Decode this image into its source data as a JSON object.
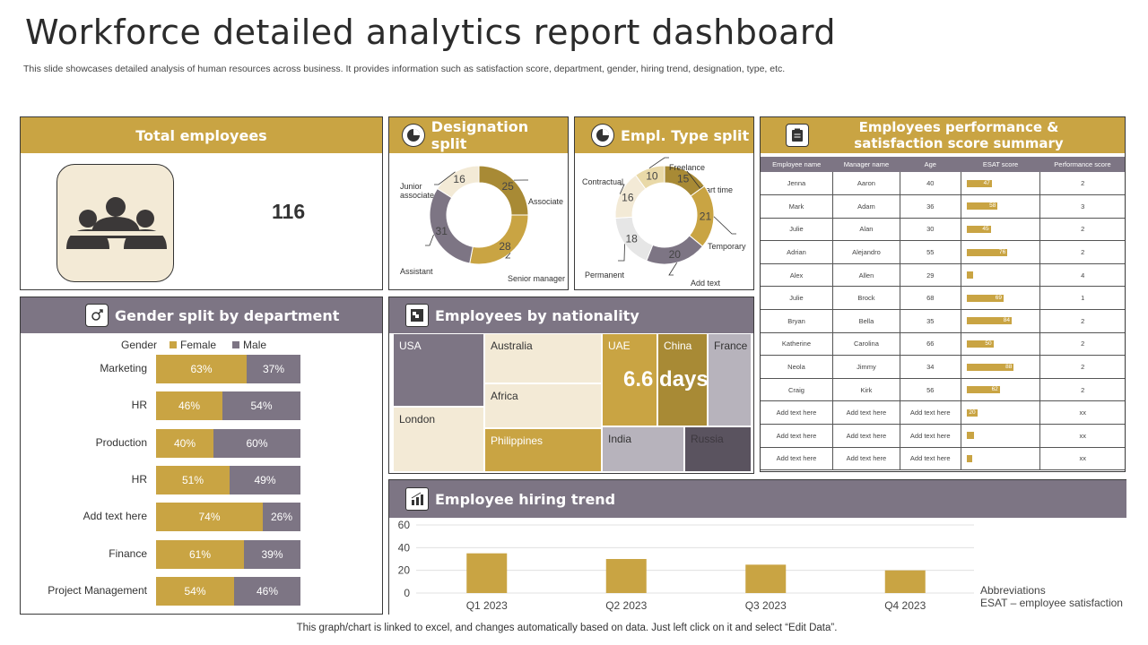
{
  "page": {
    "title": "Workforce detailed analytics report dashboard",
    "subtitle": "This slide showcases detailed analysis of human resources across business. It provides information such as satisfaction score, department, gender, hiring trend, designation, type, etc.",
    "footer": "This graph/chart is linked to excel, and changes automatically based on data. Just left click on it and select “Edit Data”."
  },
  "total": {
    "header": "Total employees",
    "value": "116",
    "icon": "people-group-icon"
  },
  "designation": {
    "header": "Designation split",
    "icon": "pie-chart-icon",
    "slices": [
      {
        "label": "Associate",
        "value": 25,
        "color": "#a88a35"
      },
      {
        "label": "Senior manager",
        "value": 28,
        "color": "#c9a443"
      },
      {
        "label": "Assistant",
        "value": 31,
        "color": "#7d7584"
      },
      {
        "label": "Junior associate",
        "value": 16,
        "color": "#f3ead6"
      }
    ]
  },
  "empltype": {
    "header": "Empl. Type split",
    "icon": "pie-chart-icon",
    "slices": [
      {
        "label": "Part time",
        "value": 15,
        "color": "#a88a35"
      },
      {
        "label": "Temporary",
        "value": 21,
        "color": "#c9a443"
      },
      {
        "label": "Add text",
        "value": 20,
        "color": "#7d7584"
      },
      {
        "label": "Permanent",
        "value": 18,
        "color": "#e6e6e6"
      },
      {
        "label": "Contractual",
        "value": 16,
        "color": "#f3ead6"
      },
      {
        "label": "Freelance",
        "value": 10,
        "color": "#e9d9a8"
      }
    ]
  },
  "perf": {
    "header": "Employees performance & satisfaction score summary",
    "icon": "clipboard-icon",
    "columns": [
      "Employee name",
      "Manager name",
      "Age",
      "ESAT score",
      "Performance score"
    ],
    "rows": [
      {
        "emp": "Jenna",
        "mgr": "Aaron",
        "age": "40",
        "esat": 47,
        "perf": "2"
      },
      {
        "emp": "Mark",
        "mgr": "Adam",
        "age": "36",
        "esat": 58,
        "perf": "3"
      },
      {
        "emp": "Julie",
        "mgr": "Alan",
        "age": "30",
        "esat": 45,
        "perf": "2"
      },
      {
        "emp": "Adrian",
        "mgr": "Alejandro",
        "age": "55",
        "esat": 76,
        "perf": "2"
      },
      {
        "emp": "Alex",
        "mgr": "Allen",
        "age": "29",
        "esat": 12,
        "perf": "4"
      },
      {
        "emp": "Julie",
        "mgr": "Brock",
        "age": "68",
        "esat": 69,
        "perf": "1"
      },
      {
        "emp": "Bryan",
        "mgr": "Bella",
        "age": "35",
        "esat": 84,
        "perf": "2"
      },
      {
        "emp": "Katherine",
        "mgr": "Carolina",
        "age": "66",
        "esat": 50,
        "perf": "2"
      },
      {
        "emp": "Neola",
        "mgr": "Jimmy",
        "age": "34",
        "esat": 88,
        "perf": "2"
      },
      {
        "emp": "Craig",
        "mgr": "Kirk",
        "age": "56",
        "esat": 62,
        "perf": "2"
      },
      {
        "emp": "Add text here",
        "mgr": "Add text here",
        "age": "Add text here",
        "esat": 20,
        "perf": "xx"
      },
      {
        "emp": "Add text here",
        "mgr": "Add text here",
        "age": "Add text here",
        "esat": 14,
        "perf": "xx"
      },
      {
        "emp": "Add text here",
        "mgr": "Add text here",
        "age": "Add text here",
        "esat": 10,
        "perf": "xx"
      }
    ]
  },
  "gender": {
    "header": "Gender split by department",
    "icon": "gender-icon",
    "legend_title": "Gender",
    "female_label": "Female",
    "male_label": "Male",
    "female_color": "#c9a443",
    "male_color": "#7d7584",
    "rows": [
      {
        "dept": "Marketing",
        "female": 63,
        "male": 37,
        "female_label": "63%",
        "male_label": "37%"
      },
      {
        "dept": "HR",
        "female": 46,
        "male": 54,
        "female_label": "46%",
        "male_label": "54%"
      },
      {
        "dept": "Production",
        "female": 40,
        "male": 60,
        "female_label": "40%",
        "male_label": "60%"
      },
      {
        "dept": "HR",
        "female": 51,
        "male": 49,
        "female_label": "51%",
        "male_label": "49%"
      },
      {
        "dept": "Add text here",
        "female": 74,
        "male": 26,
        "female_label": "74%",
        "male_label": "26%"
      },
      {
        "dept": "Finance",
        "female": 61,
        "male": 39,
        "female_label": "61%",
        "male_label": "39%"
      },
      {
        "dept": "Project Management",
        "female": 54,
        "male": 46,
        "female_label": "54%",
        "male_label": "46%"
      }
    ]
  },
  "nationality": {
    "header": "Employees by nationality",
    "icon": "map-icon",
    "cells": [
      "USA",
      "London",
      "Australia",
      "Africa",
      "Philippines",
      "UAE",
      "China",
      "France",
      "India",
      "Russia"
    ],
    "overlay": "6.6 days"
  },
  "hiring": {
    "header": "Employee hiring trend",
    "icon": "bar-chart-icon",
    "abbr_title": "Abbreviations",
    "abbr_text": "ESAT  – employee satisfaction"
  },
  "chart_data": {
    "type": "bar",
    "categories": [
      "Q1 2023",
      "Q2 2023",
      "Q3 2023",
      "Q4 2023"
    ],
    "values": [
      35,
      30,
      25,
      20
    ],
    "yticks": [
      "0",
      "20",
      "40",
      "60"
    ],
    "ylim": [
      0,
      60
    ],
    "grid": true,
    "color": "#c9a443"
  }
}
